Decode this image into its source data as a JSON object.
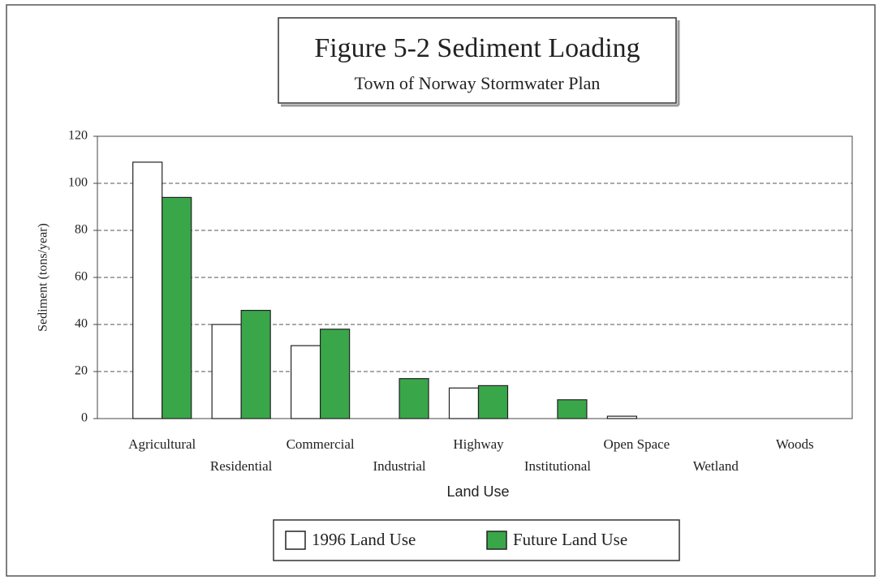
{
  "chart_data": {
    "type": "bar",
    "title": "Figure 5-2 Sediment Loading",
    "subtitle": "Town of Norway Stormwater Plan",
    "xlabel": "Land Use",
    "ylabel": "Sediment (tons/year)",
    "categories": [
      "Agricultural",
      "Residential",
      "Commercial",
      "Industrial",
      "Highway",
      "Institutional",
      "Open Space",
      "Wetland",
      "Woods"
    ],
    "series": [
      {
        "name": "1996 Land Use",
        "color": "#ffffff",
        "values": [
          109,
          40,
          31,
          0,
          13,
          0,
          1,
          0,
          0
        ]
      },
      {
        "name": "Future Land Use",
        "color": "#3aa64a",
        "values": [
          94,
          46,
          38,
          17,
          14,
          8,
          0,
          0,
          0
        ]
      }
    ],
    "ylim": [
      0,
      120
    ],
    "yticks": [
      0,
      20,
      40,
      60,
      80,
      100,
      120
    ],
    "grid": true
  }
}
